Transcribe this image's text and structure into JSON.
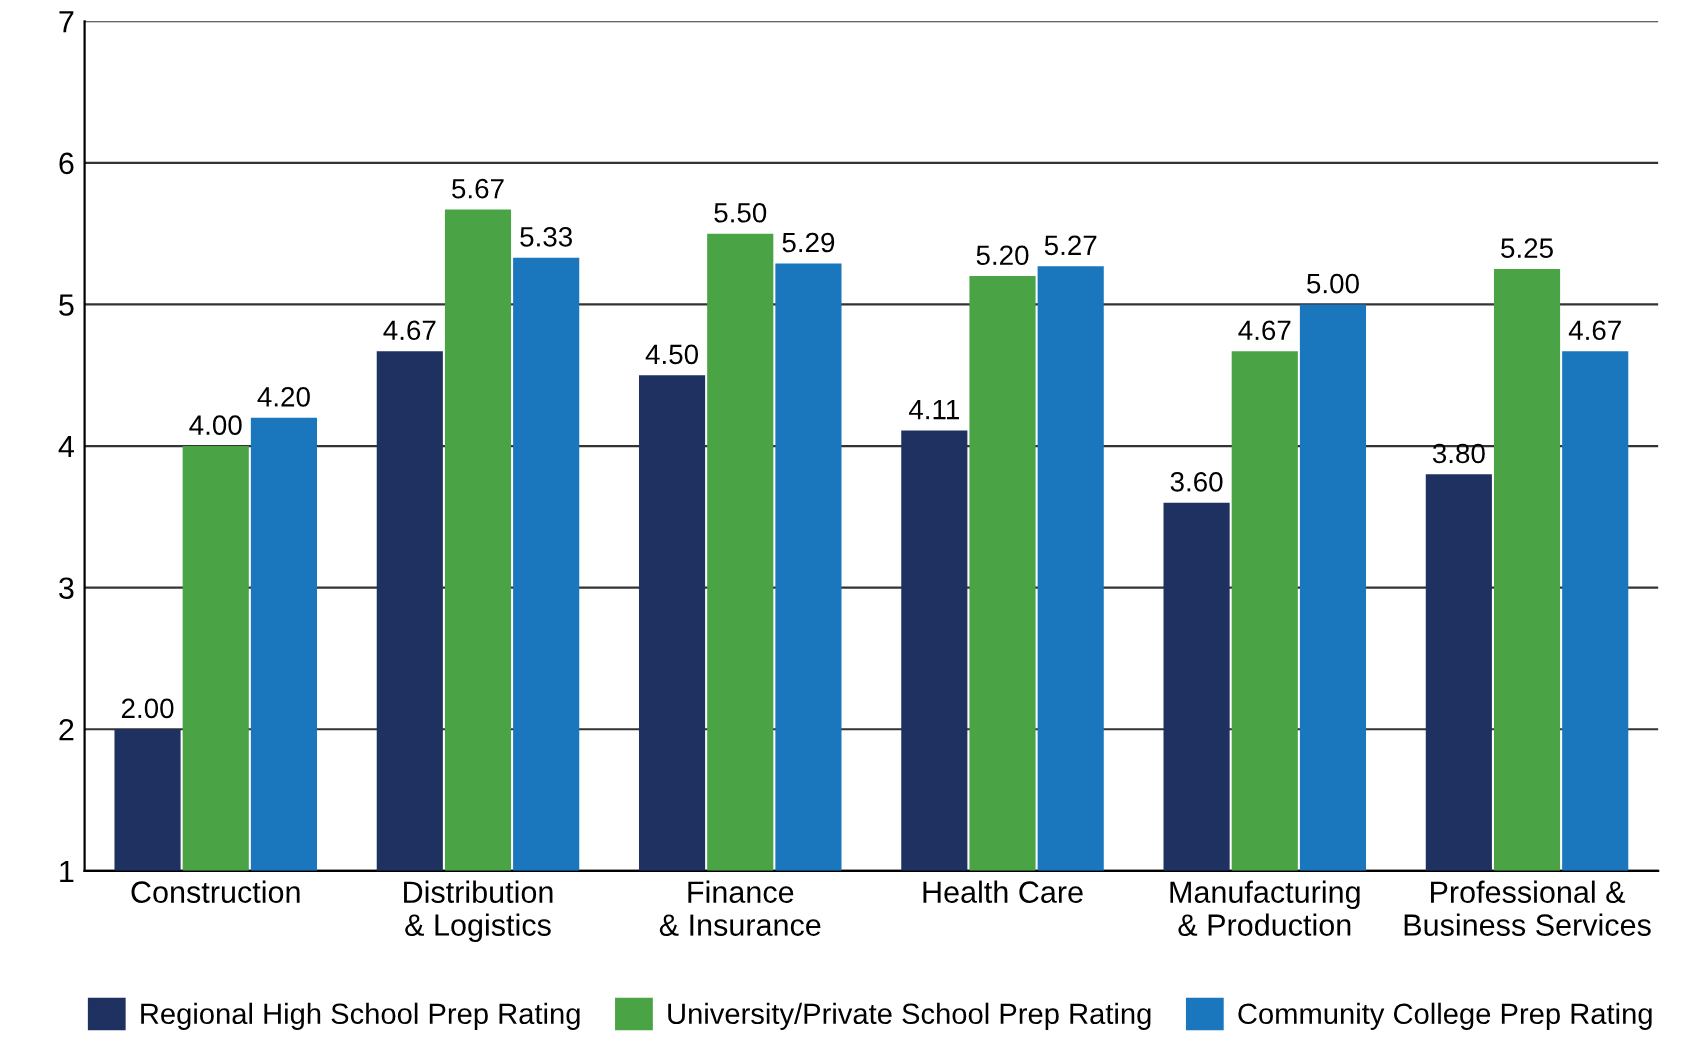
{
  "chart_data": {
    "type": "bar",
    "categories": [
      "Construction",
      "Distribution\n& Logistics",
      "Finance\n& Insurance",
      "Health Care",
      "Manufacturing\n& Production",
      "Professional &\nBusiness Services"
    ],
    "series": [
      {
        "name": "Regional High School Prep Rating",
        "color": "#1f3161",
        "values": [
          2.0,
          4.67,
          4.5,
          4.11,
          3.6,
          3.8
        ],
        "value_labels": [
          "2.00",
          "4.67",
          "4.50",
          "4.11",
          "3.60",
          "3.80"
        ]
      },
      {
        "name": "University/Private School Prep Rating",
        "color": "#4aa345",
        "values": [
          4.0,
          5.67,
          5.5,
          5.2,
          4.67,
          5.25
        ],
        "value_labels": [
          "4.00",
          "5.67",
          "5.50",
          "5.20",
          "4.67",
          "5.25"
        ]
      },
      {
        "name": "Community College Prep Rating",
        "color": "#1a76bd",
        "values": [
          4.2,
          5.33,
          5.29,
          5.27,
          5.0,
          4.67
        ],
        "value_labels": [
          "4.20",
          "5.33",
          "5.29",
          "5.27",
          "5.00",
          "4.67"
        ]
      }
    ],
    "ylim": [
      1,
      7
    ],
    "yticks": [
      1,
      2,
      3,
      4,
      5,
      6,
      7
    ],
    "grid": "y",
    "legend": "bottom"
  }
}
